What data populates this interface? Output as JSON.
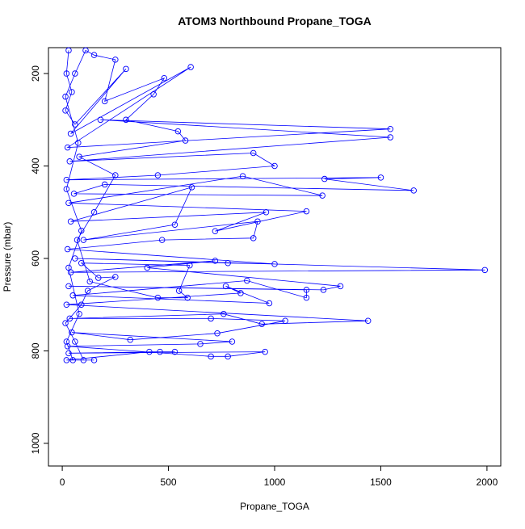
{
  "chart_data": {
    "type": "line",
    "title": "ATOM3 Northbound Propane_TOGA",
    "x_label": "Propane_TOGA",
    "y_label": "Pressure (mbar)",
    "color": "#0000ff",
    "markers": "open-circle",
    "y_reversed": true,
    "xlim": [
      -65,
      2065
    ],
    "ylim": [
      1049,
      144
    ],
    "xticks": [
      0,
      500,
      1000,
      1500,
      2000
    ],
    "yticks": [
      200,
      400,
      600,
      800,
      1000
    ],
    "x": [
      30,
      20,
      45,
      15,
      60,
      300,
      40,
      605,
      25,
      1545,
      180,
      1545,
      35,
      900,
      1000,
      450,
      20,
      1500,
      1235,
      1655,
      200,
      55,
      1225,
      850,
      30,
      1150,
      720,
      960,
      40,
      610,
      530,
      100,
      920,
      900,
      470,
      25,
      1000,
      780,
      60,
      1990,
      40,
      720,
      400,
      1310,
      1230,
      30,
      1150,
      1150,
      870,
      50,
      975,
      770,
      840,
      20,
      1440,
      940,
      760,
      35,
      700,
      1050,
      730,
      320,
      45,
      800,
      650,
      25,
      700,
      780,
      955,
      30,
      460,
      530,
      410,
      20,
      150,
      100,
      60,
      15,
      90,
      120,
      250,
      170,
      90,
      600,
      550,
      590,
      450,
      130,
      70,
      150,
      250,
      80,
      580,
      545,
      300,
      430,
      480,
      200,
      250,
      150,
      110,
      60,
      15,
      75,
      20,
      90,
      30,
      80,
      20,
      50
    ],
    "values": [
      150,
      200,
      240,
      280,
      310,
      190,
      330,
      186,
      360,
      320,
      300,
      338,
      390,
      372,
      400,
      420,
      430,
      425,
      428,
      453,
      440,
      460,
      464,
      422,
      480,
      498,
      541,
      500,
      520,
      446,
      527,
      560,
      520,
      556,
      560,
      580,
      612,
      610,
      600,
      625,
      630,
      605,
      620,
      660,
      668,
      660,
      668,
      685,
      648,
      680,
      697,
      660,
      675,
      700,
      735,
      742,
      720,
      730,
      730,
      735,
      762,
      776,
      760,
      780,
      785,
      790,
      812,
      812,
      802,
      805,
      802,
      802,
      802,
      820,
      820,
      820,
      780,
      740,
      700,
      670,
      640,
      642,
      610,
      615,
      670,
      685,
      685,
      650,
      560,
      500,
      420,
      380,
      345,
      325,
      300,
      245,
      210,
      260,
      170,
      160,
      150,
      200,
      250,
      350,
      450,
      540,
      620,
      720,
      780,
      820
    ]
  }
}
